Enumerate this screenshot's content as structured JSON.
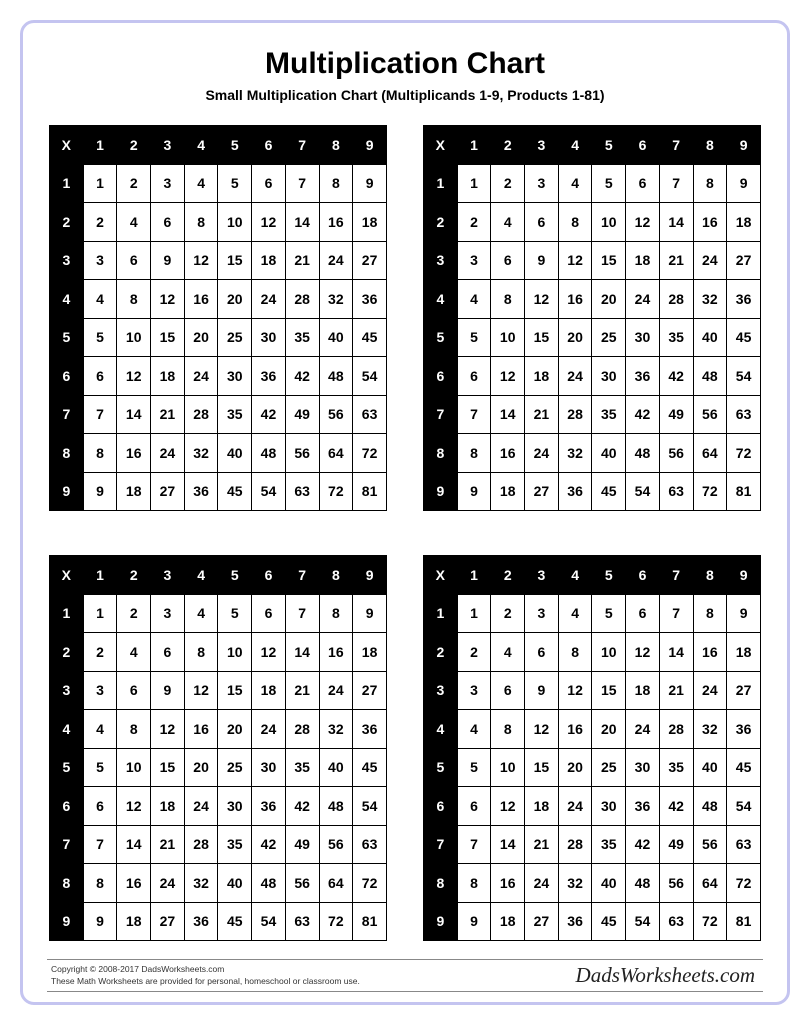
{
  "title": "Multiplication Chart",
  "subtitle": "Small Multiplication Chart (Multiplicands 1-9, Products 1-81)",
  "corner_label": "X",
  "col_headers": [
    "1",
    "2",
    "3",
    "4",
    "5",
    "6",
    "7",
    "8",
    "9"
  ],
  "row_headers": [
    "1",
    "2",
    "3",
    "4",
    "5",
    "6",
    "7",
    "8",
    "9"
  ],
  "rows": [
    [
      "1",
      "2",
      "3",
      "4",
      "5",
      "6",
      "7",
      "8",
      "9"
    ],
    [
      "2",
      "4",
      "6",
      "8",
      "10",
      "12",
      "14",
      "16",
      "18"
    ],
    [
      "3",
      "6",
      "9",
      "12",
      "15",
      "18",
      "21",
      "24",
      "27"
    ],
    [
      "4",
      "8",
      "12",
      "16",
      "20",
      "24",
      "28",
      "32",
      "36"
    ],
    [
      "5",
      "10",
      "15",
      "20",
      "25",
      "30",
      "35",
      "40",
      "45"
    ],
    [
      "6",
      "12",
      "18",
      "24",
      "30",
      "36",
      "42",
      "48",
      "54"
    ],
    [
      "7",
      "14",
      "21",
      "28",
      "35",
      "42",
      "49",
      "56",
      "63"
    ],
    [
      "8",
      "16",
      "24",
      "32",
      "40",
      "48",
      "56",
      "64",
      "72"
    ],
    [
      "9",
      "18",
      "27",
      "36",
      "45",
      "54",
      "63",
      "72",
      "81"
    ]
  ],
  "chart_count": 4,
  "colors": {
    "border_outer": "#c4c4f0",
    "header_bg": "#000000",
    "header_fg": "#ffffff",
    "cell_bg": "#ffffff",
    "cell_fg": "#000000",
    "grid_line": "#000000",
    "page_bg": "#ffffff"
  },
  "typography": {
    "title_fontsize": 30,
    "subtitle_fontsize": 14,
    "cell_fontsize": 14,
    "footer_fontsize": 8.5,
    "brand_fontsize": 21
  },
  "footer": {
    "copyright": "Copyright © 2008-2017 DadsWorksheets.com",
    "note": "These Math Worksheets are provided for personal, homeschool or classroom use.",
    "brand": "DadsWorksheets.com"
  }
}
